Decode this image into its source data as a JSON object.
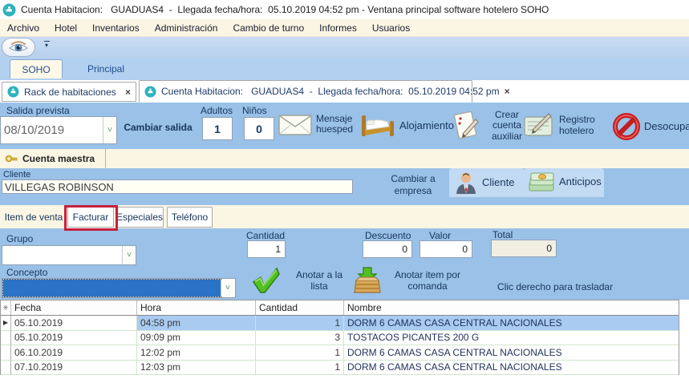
{
  "window": {
    "title": "Cuenta Habitacion:   GUADUAS4  -  Llegada fecha/hora:  05.10.2019 04:52 pm - Ventana principal software hotelero SOHO"
  },
  "menu": {
    "items": [
      "Archivo",
      "Hotel",
      "Inventarios",
      "Administración",
      "Cambio de turno",
      "Informes",
      "Usuarios"
    ]
  },
  "ribbon_tabs": {
    "soho": "SOHO",
    "principal": "Principal"
  },
  "document_tabs": {
    "rack": {
      "label": "Rack de habitaciones",
      "close": "×"
    },
    "cuenta": {
      "label": "Cuenta Habitacion:   GUADUAS4  -  Llegada fecha/hora:  05.10.2019 04:52 pm",
      "close": "×"
    }
  },
  "stay_toolbar": {
    "salida_label": "Salida prevista",
    "salida_value": "08/10/2019",
    "cambiar_salida": "Cambiar salida",
    "adultos_label": "Adultos",
    "adultos_value": "1",
    "ninos_label": "Niños",
    "ninos_value": "0",
    "mensaje_huesped": "Mensaje huesped",
    "alojamiento": "Alojamiento",
    "crear_cuenta_auxiliar": "Crear cuenta auxiliar",
    "registro_hotelero": "Registro hotelero",
    "desocupar": "Desocupar"
  },
  "cuenta_maestra_tab": "Cuenta maestra",
  "cliente_section": {
    "label": "Cliente",
    "value": "VILLEGAS ROBINSON",
    "cambiar_a_empresa": "Cambiar a empresa",
    "cliente_button": "Cliente",
    "anticipos_button": "Anticipos"
  },
  "sub_tabs": {
    "item_de_venta": "Item de venta",
    "facturar": "Facturar",
    "especiales": "Especiales",
    "telefono": "Teléfono"
  },
  "form": {
    "grupo_label": "Grupo",
    "grupo_value": "",
    "concepto_label": "Concepto",
    "concepto_value": "",
    "cantidad_label": "Cantidad",
    "cantidad_value": "1",
    "descuento_label": "Descuento",
    "descuento_value": "0",
    "valor_label": "Valor",
    "valor_value": "0",
    "total_label": "Total",
    "total_value": "0",
    "anotar_a_la_lista": "Anotar a la lista",
    "anotar_item_por_comanda": "Anotar item por comanda",
    "hint": "Clic derecho para trasladar"
  },
  "table": {
    "header_marker": "✳",
    "headers": [
      "Fecha",
      "Hora",
      "Cantidad",
      "Nombre"
    ],
    "rows": [
      {
        "marker": "▶",
        "fecha": "05.10.2019",
        "hora": "04:58 pm",
        "cantidad": "1",
        "nombre": "DORM 6 CAMAS CASA CENTRAL NACIONALES",
        "selected": true
      },
      {
        "marker": "",
        "fecha": "05.10.2019",
        "hora": "09:09 pm",
        "cantidad": "3",
        "nombre": "TOSTACOS PICANTES 200 G",
        "selected": false
      },
      {
        "marker": "",
        "fecha": "06.10.2019",
        "hora": "12:02 pm",
        "cantidad": "1",
        "nombre": "DORM 6 CAMAS CASA CENTRAL NACIONALES",
        "selected": false
      },
      {
        "marker": "",
        "fecha": "07.10.2019",
        "hora": "12:03 pm",
        "cantidad": "1",
        "nombre": "DORM 6 CAMAS CASA CENTRAL NACIONALES",
        "selected": false
      }
    ]
  },
  "colors": {
    "panel_blue": "#9ac1e8",
    "ribbon_blue": "#b2d0f0",
    "cream": "#fbf6e4",
    "selected_row": "#a9cbf1",
    "concepto_selection": "#2b73c6",
    "annotation_red": "#c6203e",
    "app_teal": "#2fb2be"
  }
}
